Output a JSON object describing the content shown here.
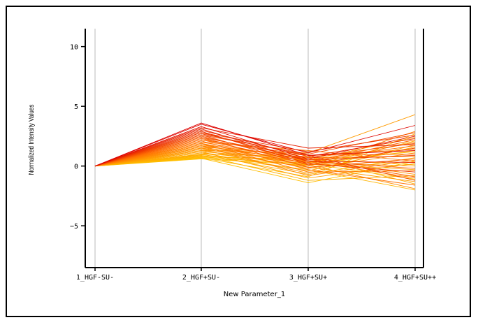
{
  "chart_data": {
    "type": "line",
    "xlabel": "New Parameter_1",
    "ylabel": "Normalized Intensity Values",
    "categories": [
      "1_HGF-SU-",
      "2_HGF+SU-",
      "3_HGF+SU+",
      "4_HGF+SU++"
    ],
    "ylim": [
      -8.5,
      11.5
    ],
    "yticks": [
      -5,
      0,
      5,
      10
    ],
    "grid": "vertical",
    "colors": {
      "high": "#dd0000",
      "low": "#ffc000",
      "axis": "#000000",
      "grid": "#bbbbbb"
    },
    "series": [
      {
        "values": [
          0,
          3.6,
          0.9,
          1.3
        ]
      },
      {
        "values": [
          0,
          3.5,
          1.1,
          3.4
        ]
      },
      {
        "values": [
          0,
          3.3,
          0.6,
          2.5
        ]
      },
      {
        "values": [
          0,
          3.2,
          1.5,
          1.8
        ]
      },
      {
        "values": [
          0,
          3.1,
          0.4,
          0.3
        ]
      },
      {
        "values": [
          0,
          3.0,
          0.8,
          2.3
        ]
      },
      {
        "values": [
          0,
          2.9,
          0.2,
          -0.5
        ]
      },
      {
        "values": [
          0,
          2.8,
          1.2,
          2.6
        ]
      },
      {
        "values": [
          0,
          2.8,
          0.5,
          0.9
        ]
      },
      {
        "values": [
          0,
          2.7,
          0.9,
          -1.2
        ]
      },
      {
        "values": [
          0,
          2.6,
          0.1,
          1.5
        ]
      },
      {
        "values": [
          0,
          2.6,
          1.0,
          2.8
        ]
      },
      {
        "values": [
          0,
          2.5,
          0.4,
          -0.2
        ]
      },
      {
        "values": [
          0,
          2.4,
          0.7,
          1.9
        ]
      },
      {
        "values": [
          0,
          2.4,
          -0.1,
          0.6
        ]
      },
      {
        "values": [
          0,
          2.3,
          0.6,
          -0.9
        ]
      },
      {
        "values": [
          0,
          2.2,
          0.3,
          2.2
        ]
      },
      {
        "values": [
          0,
          2.2,
          0.9,
          1.0
        ]
      },
      {
        "values": [
          0,
          2.1,
          -0.3,
          -1.6
        ]
      },
      {
        "values": [
          0,
          2.0,
          0.5,
          1.7
        ]
      },
      {
        "values": [
          0,
          2.0,
          1.3,
          0.4
        ]
      },
      {
        "values": [
          0,
          1.9,
          0.2,
          2.0
        ]
      },
      {
        "values": [
          0,
          1.9,
          -0.5,
          -0.4
        ]
      },
      {
        "values": [
          0,
          1.8,
          0.7,
          0.8
        ]
      },
      {
        "values": [
          0,
          1.8,
          0.0,
          2.9
        ]
      },
      {
        "values": [
          0,
          1.7,
          0.4,
          -1.0
        ]
      },
      {
        "values": [
          0,
          1.7,
          -0.8,
          0.5
        ]
      },
      {
        "values": [
          0,
          1.6,
          0.9,
          1.4
        ]
      },
      {
        "values": [
          0,
          1.6,
          0.1,
          -1.9
        ]
      },
      {
        "values": [
          0,
          1.5,
          -0.2,
          1.1
        ]
      },
      {
        "values": [
          0,
          1.5,
          0.6,
          -0.7
        ]
      },
      {
        "values": [
          0,
          1.4,
          -0.6,
          1.8
        ]
      },
      {
        "values": [
          0,
          1.4,
          0.3,
          0.0
        ]
      },
      {
        "values": [
          0,
          1.3,
          1.1,
          4.3
        ]
      },
      {
        "values": [
          0,
          1.3,
          -0.1,
          -1.3
        ]
      },
      {
        "values": [
          0,
          1.2,
          0.5,
          2.4
        ]
      },
      {
        "values": [
          0,
          1.2,
          -1.0,
          0.2
        ]
      },
      {
        "values": [
          0,
          1.1,
          0.2,
          -0.3
        ]
      },
      {
        "values": [
          0,
          1.1,
          -0.4,
          1.6
        ]
      },
      {
        "values": [
          0,
          1.0,
          0.8,
          -1.5
        ]
      },
      {
        "values": [
          0,
          1.0,
          -0.7,
          0.7
        ]
      },
      {
        "values": [
          0,
          0.95,
          0.0,
          2.1
        ]
      },
      {
        "values": [
          0,
          0.9,
          -1.2,
          -0.8
        ]
      },
      {
        "values": [
          0,
          0.85,
          0.4,
          1.2
        ]
      },
      {
        "values": [
          0,
          0.8,
          -0.3,
          -2.0
        ]
      },
      {
        "values": [
          0,
          0.75,
          0.6,
          0.1
        ]
      },
      {
        "values": [
          0,
          0.7,
          -0.9,
          2.7
        ]
      },
      {
        "values": [
          0,
          0.7,
          0.2,
          -1.1
        ]
      },
      {
        "values": [
          0,
          0.65,
          -1.4,
          0.4
        ]
      },
      {
        "values": [
          0,
          0.6,
          0.1,
          1.3
        ]
      }
    ]
  }
}
